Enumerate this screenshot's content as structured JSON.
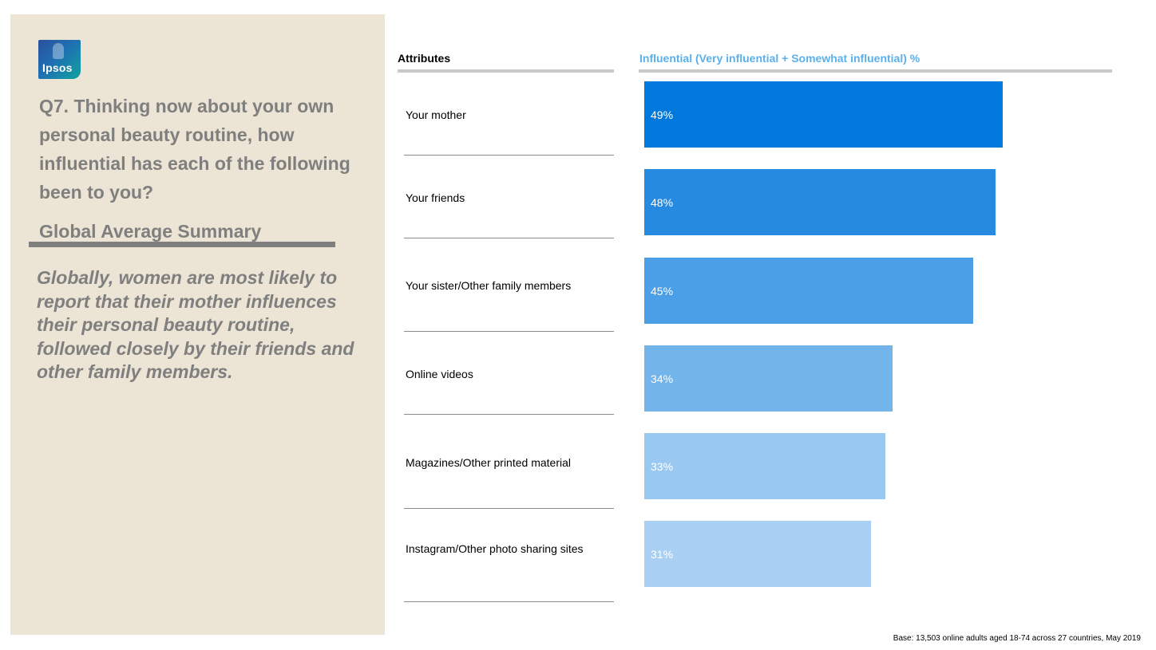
{
  "brand": {
    "logo_text": "Ipsos"
  },
  "question": "Q7. Thinking now about your own personal beauty routine, how influential has each of the following been to you?",
  "summary_title": "Global Average Summary",
  "insight": "Globally, women are most likely to report that their mother influences their personal beauty routine, followed closely by their friends and other family members.",
  "footnote": "Base: 13,503 online adults aged 18-74 across 27 countries,  May 2019",
  "chart_data": {
    "type": "bar",
    "orientation": "horizontal",
    "title": "",
    "category_header": "Attributes",
    "value_header": "Influential (Very influential + Somewhat influential) %",
    "categories": [
      "Your mother",
      "Your friends",
      "Your sister/Other family members",
      "Online videos",
      "Magazines/Other printed material",
      "Instagram/Other photo sharing sites"
    ],
    "values": [
      49,
      48,
      45,
      34,
      33,
      31
    ],
    "value_labels": [
      "49%",
      "48%",
      "45%",
      "34%",
      "33%",
      "31%"
    ],
    "xlim": [
      0,
      64
    ],
    "grid": false,
    "legend": "none",
    "bar_colors": [
      "#0078DC",
      "#268BE0",
      "#4A9FE6",
      "#73B4EA",
      "#99C8F0",
      "#A9D0F2"
    ]
  }
}
